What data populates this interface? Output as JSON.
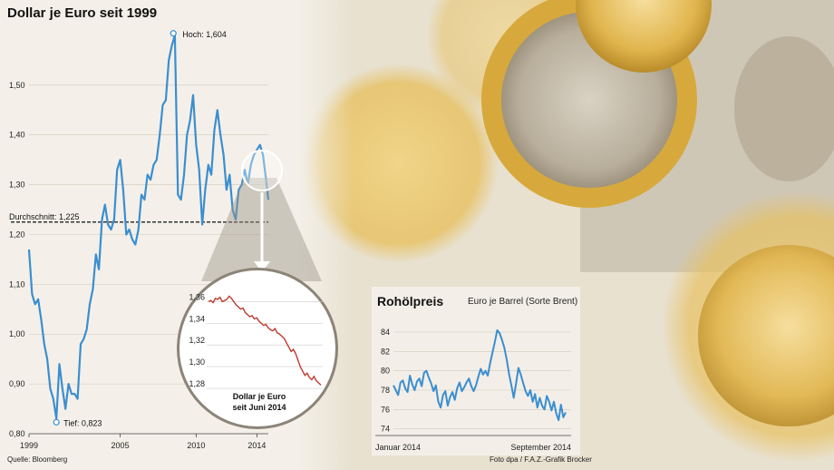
{
  "colors": {
    "main_line": "#3b8ed0",
    "inset_line": "#c0392b",
    "oil_line": "#3b8ed0",
    "panel_bg": "#f4f1ea",
    "gold": "#e2b647",
    "text": "#1a1a1a"
  },
  "source": "Quelle: Bloomberg",
  "credit": "Foto dpa / F.A.Z.-Grafik Brocker",
  "chart_data": [
    {
      "type": "line",
      "title": "Dollar je Euro seit 1999",
      "xlim": [
        1999,
        2014.75
      ],
      "ylim": [
        0.8,
        1.62
      ],
      "x_ticks": [
        1999,
        2005,
        2010,
        2014
      ],
      "x_tick_labels": [
        "1999",
        "2005",
        "2010",
        "2014"
      ],
      "y_ticks": [
        0.8,
        0.9,
        1.0,
        1.1,
        1.2,
        1.3,
        1.4,
        1.5
      ],
      "y_tick_labels": [
        "0,80",
        "0,90",
        "1,00",
        "1,10",
        "1,20",
        "1,30",
        "1,40",
        "1,50"
      ],
      "annotations": {
        "high": {
          "label": "Hoch: 1,604",
          "x": 2008.5,
          "y": 1.604
        },
        "low": {
          "label": "Tief: 0,823",
          "x": 2000.8,
          "y": 0.823
        },
        "average": {
          "label": "Durchschnitt: 1,225",
          "y": 1.225
        }
      },
      "series": [
        {
          "x": [
            1999.0,
            1999.2,
            1999.4,
            1999.6,
            1999.8,
            2000.0,
            2000.2,
            2000.4,
            2000.6,
            2000.8,
            2001.0,
            2001.2,
            2001.4,
            2001.6,
            2001.8,
            2002.0,
            2002.2,
            2002.4,
            2002.6,
            2002.8,
            2003.0,
            2003.2,
            2003.4,
            2003.6,
            2003.8,
            2004.0,
            2004.2,
            2004.4,
            2004.6,
            2004.8,
            2005.0,
            2005.2,
            2005.4,
            2005.6,
            2005.8,
            2006.0,
            2006.2,
            2006.4,
            2006.6,
            2006.8,
            2007.0,
            2007.2,
            2007.4,
            2007.6,
            2007.8,
            2008.0,
            2008.2,
            2008.4,
            2008.6,
            2008.8,
            2009.0,
            2009.2,
            2009.4,
            2009.6,
            2009.8,
            2010.0,
            2010.2,
            2010.4,
            2010.6,
            2010.8,
            2011.0,
            2011.2,
            2011.4,
            2011.6,
            2011.8,
            2012.0,
            2012.2,
            2012.4,
            2012.6,
            2012.8,
            2013.0,
            2013.2,
            2013.4,
            2013.6,
            2013.8,
            2014.0,
            2014.2,
            2014.4,
            2014.6,
            2014.75
          ],
          "values": [
            1.17,
            1.08,
            1.06,
            1.07,
            1.03,
            0.98,
            0.95,
            0.89,
            0.87,
            0.83,
            0.94,
            0.89,
            0.85,
            0.9,
            0.88,
            0.88,
            0.87,
            0.98,
            0.99,
            1.01,
            1.06,
            1.09,
            1.16,
            1.13,
            1.23,
            1.26,
            1.22,
            1.21,
            1.23,
            1.33,
            1.35,
            1.29,
            1.2,
            1.21,
            1.19,
            1.18,
            1.21,
            1.28,
            1.27,
            1.32,
            1.31,
            1.34,
            1.35,
            1.4,
            1.46,
            1.47,
            1.55,
            1.58,
            1.6,
            1.28,
            1.27,
            1.32,
            1.4,
            1.43,
            1.48,
            1.38,
            1.33,
            1.22,
            1.29,
            1.34,
            1.32,
            1.41,
            1.45,
            1.4,
            1.36,
            1.29,
            1.32,
            1.25,
            1.23,
            1.29,
            1.3,
            1.33,
            1.3,
            1.34,
            1.36,
            1.37,
            1.38,
            1.36,
            1.31,
            1.27
          ]
        }
      ]
    },
    {
      "type": "line",
      "title": "Dollar je Euro seit Juni 2014",
      "ylim": [
        1.275,
        1.372
      ],
      "y_ticks": [
        1.28,
        1.3,
        1.32,
        1.34,
        1.36
      ],
      "y_tick_labels": [
        "1,28",
        "1,30",
        "1,32",
        "1,34",
        "1,36"
      ],
      "series": [
        {
          "values": [
            1.36,
            1.361,
            1.359,
            1.363,
            1.362,
            1.364,
            1.36,
            1.361,
            1.362,
            1.365,
            1.363,
            1.36,
            1.357,
            1.355,
            1.353,
            1.354,
            1.35,
            1.348,
            1.346,
            1.347,
            1.344,
            1.345,
            1.342,
            1.34,
            1.338,
            1.339,
            1.336,
            1.334,
            1.333,
            1.335,
            1.331,
            1.33,
            1.328,
            1.326,
            1.322,
            1.318,
            1.314,
            1.316,
            1.312,
            1.306,
            1.3,
            1.296,
            1.292,
            1.294,
            1.29,
            1.288,
            1.291,
            1.287,
            1.285,
            1.283
          ]
        }
      ]
    },
    {
      "type": "line",
      "title": "Rohölpreis",
      "subtitle": "Euro je Barrel (Sorte Brent)",
      "xlabel_start": "Januar 2014",
      "xlabel_end": "September 2014",
      "ylim": [
        73.5,
        85.5
      ],
      "y_ticks": [
        74,
        76,
        78,
        80,
        82,
        84
      ],
      "y_tick_labels": [
        "74",
        "76",
        "78",
        "80",
        "82",
        "84"
      ],
      "series": [
        {
          "values": [
            78.5,
            78.0,
            77.5,
            78.8,
            79.0,
            78.2,
            77.8,
            79.5,
            78.6,
            78.0,
            78.9,
            79.2,
            78.4,
            79.8,
            80.0,
            79.3,
            78.7,
            77.9,
            78.5,
            76.8,
            76.2,
            77.5,
            77.9,
            76.4,
            77.3,
            77.8,
            77.0,
            78.2,
            78.8,
            77.9,
            78.3,
            78.8,
            79.2,
            78.4,
            77.9,
            78.5,
            79.4,
            80.2,
            79.6,
            80.0,
            79.5,
            80.8,
            81.9,
            83.0,
            84.2,
            83.9,
            83.2,
            82.4,
            81.2,
            79.7,
            78.5,
            77.2,
            78.7,
            80.3,
            79.6,
            78.7,
            77.9,
            77.4,
            78.0,
            76.8,
            77.6,
            76.2,
            77.2,
            76.4,
            76.0,
            77.4,
            76.8,
            75.9,
            76.8,
            75.6,
            74.9,
            76.5,
            75.2,
            75.7
          ]
        }
      ]
    }
  ]
}
